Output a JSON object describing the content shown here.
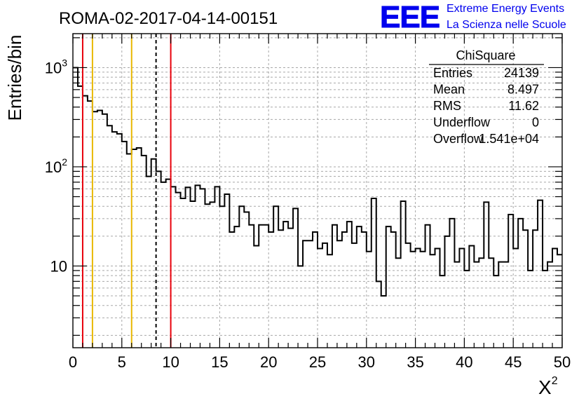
{
  "chart_data": {
    "type": "histogram",
    "title": "ROMA-02-2017-04-14-00151",
    "xlabel": "X",
    "xlabel_superscript": "2",
    "ylabel": "Entries/bin",
    "xlim": [
      0,
      50
    ],
    "ylim": [
      1.5,
      2200
    ],
    "y_scale": "log",
    "grid": true,
    "bin_width": 0.5,
    "x_ticks": [
      "0",
      "5",
      "10",
      "15",
      "20",
      "25",
      "30",
      "35",
      "40",
      "45",
      "50"
    ],
    "y_ticks": [
      {
        "value": 10,
        "base": "10",
        "exp": ""
      },
      {
        "value": 100,
        "base": "10",
        "exp": "2"
      },
      {
        "value": 1000,
        "base": "10",
        "exp": "3"
      }
    ],
    "values": [
      1000,
      650,
      520,
      460,
      360,
      370,
      340,
      260,
      225,
      215,
      180,
      135,
      150,
      155,
      130,
      80,
      120,
      90,
      70,
      75,
      63,
      55,
      48,
      62,
      45,
      65,
      60,
      42,
      44,
      63,
      40,
      53,
      22,
      25,
      40,
      35,
      26,
      16,
      26,
      26,
      22,
      40,
      23,
      28,
      24,
      38,
      10,
      18,
      18,
      22,
      15,
      17,
      13,
      26,
      18,
      22,
      28,
      17,
      25,
      22,
      14,
      48,
      7,
      5,
      25,
      22,
      12,
      45,
      17,
      14,
      15,
      14,
      26,
      13,
      15,
      8,
      20,
      30,
      11,
      15,
      9,
      16,
      11,
      12,
      44,
      12,
      8,
      11,
      11,
      33,
      15,
      30,
      23,
      9,
      23,
      46,
      9,
      11,
      15,
      13
    ],
    "vertical_lines": [
      {
        "x": 1,
        "color": "#e8000b",
        "style": "solid"
      },
      {
        "x": 2,
        "color": "#e8b800",
        "style": "solid"
      },
      {
        "x": 6,
        "color": "#e8b800",
        "style": "solid"
      },
      {
        "x": 8.497,
        "color": "#000000",
        "style": "dashed"
      },
      {
        "x": 10,
        "color": "#e8000b",
        "style": "solid"
      }
    ],
    "stats_box": {
      "title": "ChiSquare",
      "rows": [
        {
          "label": "Entries",
          "value": "24139"
        },
        {
          "label": "Mean",
          "value": "8.497"
        },
        {
          "label": "RMS",
          "value": "11.62"
        },
        {
          "label": "Underflow",
          "value": "0"
        },
        {
          "label": "Overflow",
          "value": "1.541e+04"
        }
      ]
    }
  },
  "branding": {
    "logo_text": "EEE",
    "line1": "Extreme Energy Events",
    "line2": "La Scienza nelle Scuole",
    "color": "#0000ee"
  }
}
